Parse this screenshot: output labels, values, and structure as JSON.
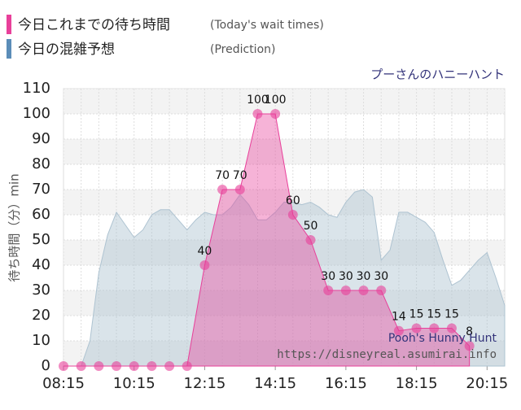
{
  "chart_data": {
    "type": "area",
    "legend": [
      {
        "name": "今日これまでの待ち時間",
        "note": "(Today's wait times)",
        "color": "#e8409a"
      },
      {
        "name": "今日の混雑予想",
        "note": "(Prediction)",
        "color": "#5b8db8"
      }
    ],
    "attraction": "プーさんのハニーハント",
    "watermark": [
      "Pooh's Hunny Hunt",
      "https://disneyreal.asumirai.info"
    ],
    "ylabel": "待ち時間（分）min",
    "ylim": [
      0,
      110
    ],
    "yticks": [
      0,
      10,
      20,
      30,
      40,
      50,
      60,
      70,
      80,
      90,
      100,
      110
    ],
    "xlim": [
      "08:15",
      "20:45"
    ],
    "xticks": [
      "08:15",
      "10:15",
      "12:15",
      "14:15",
      "16:15",
      "18:15",
      "20:15"
    ],
    "grid": true,
    "series": [
      {
        "name": "今日の混雑予想",
        "color": "#aec3d1",
        "x": [
          "08:15",
          "08:30",
          "08:45",
          "09:00",
          "09:15",
          "09:30",
          "09:45",
          "10:00",
          "10:15",
          "10:30",
          "10:45",
          "11:00",
          "11:15",
          "11:30",
          "11:45",
          "12:00",
          "12:15",
          "12:30",
          "12:45",
          "13:00",
          "13:15",
          "13:30",
          "13:45",
          "14:00",
          "14:15",
          "14:30",
          "14:45",
          "15:00",
          "15:15",
          "15:30",
          "15:45",
          "16:00",
          "16:15",
          "16:30",
          "16:45",
          "17:00",
          "17:15",
          "17:30",
          "17:45",
          "18:00",
          "18:15",
          "18:30",
          "18:45",
          "19:00",
          "19:15",
          "19:30",
          "19:45",
          "20:00",
          "20:15",
          "20:30",
          "20:45"
        ],
        "values": [
          0,
          0,
          0,
          10,
          37,
          52,
          61,
          56,
          51,
          54,
          60,
          62,
          62,
          58,
          54,
          58,
          61,
          60,
          60,
          63,
          68,
          64,
          58,
          58,
          61,
          65,
          65,
          64,
          65,
          63,
          60,
          59,
          65,
          69,
          70,
          67,
          42,
          46,
          61,
          61,
          59,
          57,
          53,
          42,
          32,
          34,
          38,
          42,
          45,
          35,
          24
        ]
      },
      {
        "name": "今日これまでの待ち時間",
        "color": "#e8409a",
        "x": [
          "08:15",
          "08:45",
          "09:15",
          "09:45",
          "10:15",
          "10:45",
          "11:15",
          "11:45",
          "12:15",
          "12:45",
          "13:15",
          "13:45",
          "14:15",
          "14:45",
          "15:15",
          "15:45",
          "16:15",
          "16:45",
          "17:15",
          "17:45",
          "18:15",
          "18:45",
          "19:15",
          "19:45"
        ],
        "values": [
          0,
          0,
          0,
          0,
          0,
          0,
          0,
          0,
          40,
          70,
          70,
          100,
          100,
          60,
          50,
          30,
          30,
          30,
          30,
          14,
          15,
          15,
          15,
          8
        ]
      }
    ]
  }
}
